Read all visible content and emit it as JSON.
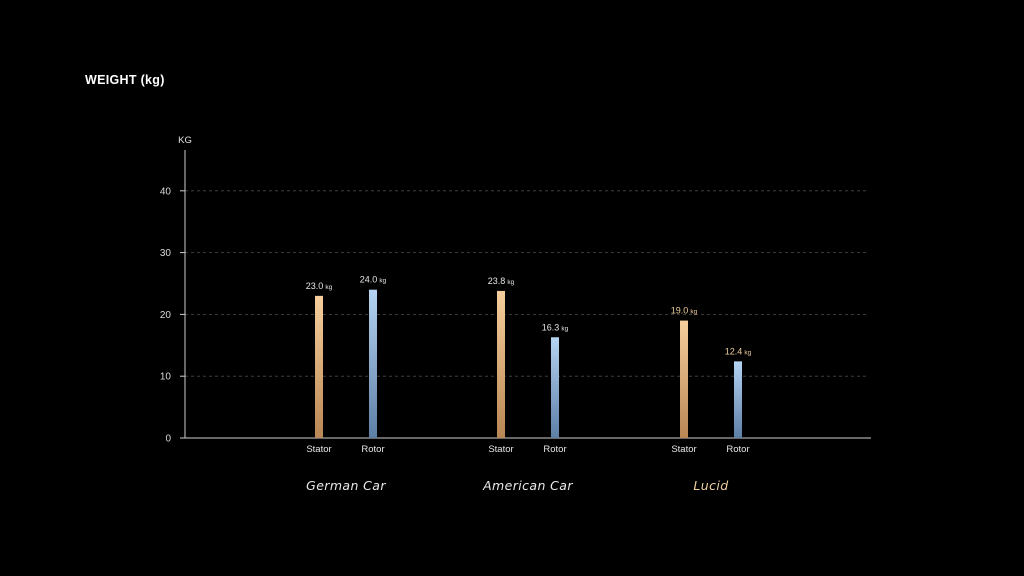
{
  "page": {
    "title": "WEIGHT (kg)"
  },
  "chart_data": {
    "type": "bar",
    "ylabel": "KG",
    "ylim": [
      0,
      45
    ],
    "yticks": [
      0,
      10,
      20,
      30,
      40
    ],
    "grid": true,
    "groups": [
      {
        "name": "German Car",
        "highlight": false,
        "bars": [
          {
            "label": "Stator",
            "value": 23.0,
            "value_text": "23.0",
            "unit": "kg",
            "series": "stator"
          },
          {
            "label": "Rotor",
            "value": 24.0,
            "value_text": "24.0",
            "unit": "kg",
            "series": "rotor"
          }
        ]
      },
      {
        "name": "American Car",
        "highlight": false,
        "bars": [
          {
            "label": "Stator",
            "value": 23.8,
            "value_text": "23.8",
            "unit": "kg",
            "series": "stator"
          },
          {
            "label": "Rotor",
            "value": 16.3,
            "value_text": "16.3",
            "unit": "kg",
            "series": "rotor"
          }
        ]
      },
      {
        "name": "Lucid",
        "highlight": true,
        "bars": [
          {
            "label": "Stator",
            "value": 19.0,
            "value_text": "19.0",
            "unit": "kg",
            "series": "stator"
          },
          {
            "label": "Rotor",
            "value": 12.4,
            "value_text": "12.4",
            "unit": "kg",
            "series": "rotor"
          }
        ]
      }
    ],
    "colors": {
      "stator_top": "#f6cf9c",
      "stator_bottom": "#b98655",
      "rotor_top": "#b5d3f2",
      "rotor_bottom": "#5d7fa6",
      "highlight_text": "#efcf9f",
      "text": "#e6e6e6",
      "axis": "#cfcfcf",
      "grid": "#4a4a4a"
    }
  }
}
